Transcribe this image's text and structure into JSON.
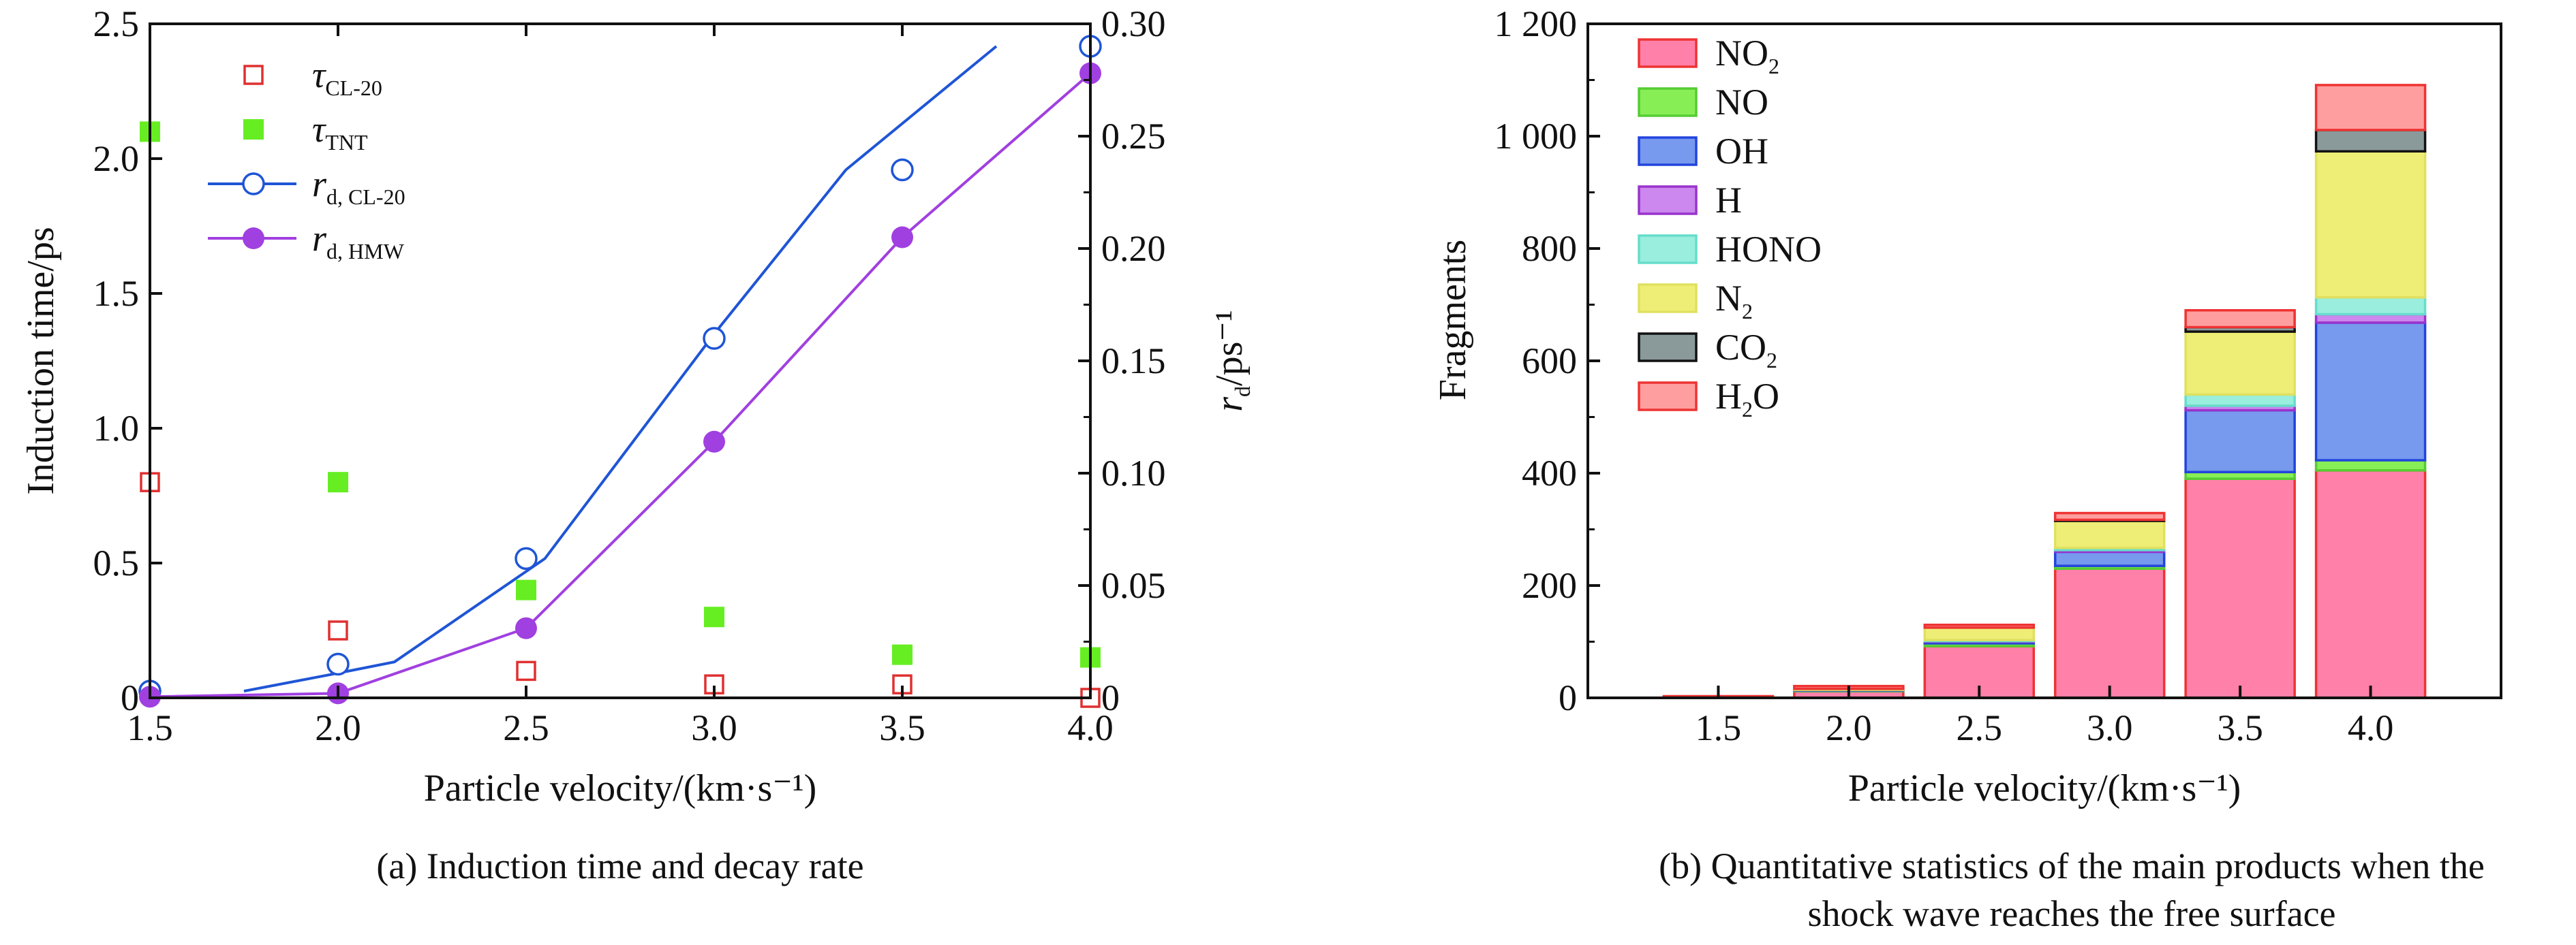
{
  "colors": {
    "cl20_open": "#e03030",
    "tnt_filled": "#66ee22",
    "rd_cl20": "#1f55d6",
    "rd_hmw": "#a040e0",
    "NO2": "#ff80a8",
    "NO": "#88ee55",
    "OH": "#7799ee",
    "H": "#cc88ee",
    "HONO": "#99eedd",
    "N2": "#eeee77",
    "CO2": "#8a9a9a",
    "H2O": "#ff9e9e"
  },
  "chart_data": [
    {
      "type": "scatter",
      "panel": "a",
      "caption": "(a) Induction time and decay rate",
      "xlabel": "Particle velocity/(km·s⁻¹)",
      "ylabel_left": "Induction time/ps",
      "ylabel_right_main": "r",
      "ylabel_right_sub": "d",
      "ylabel_right_unit": "/ps⁻¹",
      "xlim": [
        1.5,
        4.0
      ],
      "ylim_left": [
        0,
        2.5
      ],
      "ylim_right": [
        0,
        0.3
      ],
      "xticks": [
        "1.5",
        "2.0",
        "2.5",
        "3.0",
        "3.5",
        "4.0"
      ],
      "yticks_left": [
        "0",
        "0.5",
        "1.0",
        "1.5",
        "2.0",
        "2.5"
      ],
      "yticks_right": [
        "0",
        "0.05",
        "0.10",
        "0.15",
        "0.20",
        "0.25",
        "0.30"
      ],
      "legend_position": "top-left",
      "series": [
        {
          "name_main": "τ",
          "name_sub": "CL-20",
          "axis": "left",
          "marker": "open-square",
          "x": [
            1.5,
            2.0,
            2.5,
            3.0,
            3.5,
            4.0
          ],
          "y": [
            0.8,
            0.25,
            0.1,
            0.05,
            0.05,
            0.0
          ]
        },
        {
          "name_main": "τ",
          "name_sub": "TNT",
          "axis": "left",
          "marker": "filled-square",
          "x": [
            1.5,
            2.0,
            2.5,
            3.0,
            3.5,
            4.0
          ],
          "y": [
            2.1,
            0.8,
            0.4,
            0.3,
            0.16,
            0.15
          ]
        },
        {
          "name_main": "r",
          "name_sub": "d, CL-20",
          "axis": "right",
          "marker": "open-circle",
          "x": [
            1.5,
            2.0,
            2.5,
            3.0,
            3.5,
            4.0
          ],
          "y": [
            0.003,
            0.015,
            0.062,
            0.16,
            0.235,
            0.29
          ],
          "fit_x": [
            1.75,
            2.0,
            2.15,
            2.55,
            3.0,
            3.35,
            3.75
          ],
          "fit_y": [
            0.003,
            0.011,
            0.016,
            0.062,
            0.162,
            0.235,
            0.29
          ]
        },
        {
          "name_main": "r",
          "name_sub": "d, HMW",
          "axis": "right",
          "marker": "filled-circle",
          "x": [
            1.5,
            2.0,
            2.5,
            3.0,
            3.5,
            4.0
          ],
          "y": [
            0.0005,
            0.002,
            0.031,
            0.114,
            0.205,
            0.278
          ],
          "fit_x": [
            1.5,
            2.0,
            2.5,
            3.0,
            3.5,
            4.0
          ],
          "fit_y": [
            0.0005,
            0.002,
            0.031,
            0.114,
            0.205,
            0.278
          ]
        }
      ]
    },
    {
      "type": "bar",
      "stacked": true,
      "panel": "b",
      "caption_line1": "(b) Quantitative statistics of the main products when the",
      "caption_line2": "shock wave reaches the free surface",
      "xlabel": "Particle velocity/(km·s⁻¹)",
      "ylabel": "Fragments",
      "categories": [
        "1.5",
        "2.0",
        "2.5",
        "3.0",
        "3.5",
        "4.0"
      ],
      "ylim": [
        0,
        1200
      ],
      "yticks": [
        "0",
        "200",
        "400",
        "600",
        "800",
        "1 000",
        "1 200"
      ],
      "legend_position": "top-left",
      "series": [
        {
          "key": "NO2",
          "name_main": "NO",
          "name_sub": "2",
          "values": [
            2,
            12,
            92,
            230,
            390,
            405
          ]
        },
        {
          "key": "NO",
          "name_main": "NO",
          "name_sub": "",
          "values": [
            0,
            1,
            5,
            5,
            12,
            18
          ]
        },
        {
          "key": "OH",
          "name_main": "OH",
          "name_sub": "",
          "values": [
            0,
            1,
            3,
            25,
            110,
            245
          ]
        },
        {
          "key": "H",
          "name_main": "H",
          "name_sub": "",
          "values": [
            0,
            0,
            1,
            3,
            8,
            15
          ]
        },
        {
          "key": "HONO",
          "name_main": "HONO",
          "name_sub": "",
          "values": [
            0,
            0,
            2,
            4,
            20,
            30
          ]
        },
        {
          "key": "N2",
          "name_main": "N",
          "name_sub": "2",
          "values": [
            0,
            2,
            22,
            48,
            112,
            260
          ]
        },
        {
          "key": "CO2",
          "name_main": "CO",
          "name_sub": "2",
          "values": [
            0,
            0,
            0,
            2,
            8,
            38
          ]
        },
        {
          "key": "H2O",
          "name_main": "H",
          "name_sub": "2",
          "name_tail": "O",
          "values": [
            1,
            5,
            5,
            12,
            30,
            80
          ]
        }
      ]
    }
  ]
}
